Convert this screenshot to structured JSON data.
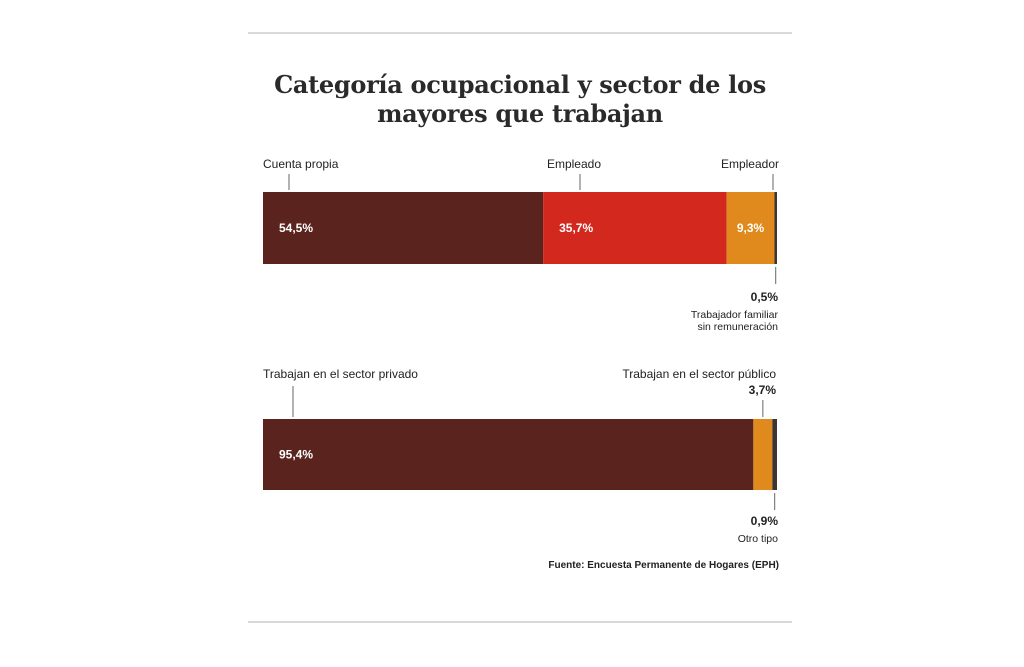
{
  "title": "Categoría ocupacional y sector de los mayores que trabajan",
  "colors": {
    "maroon": "#5a231d",
    "red": "#d2281e",
    "orange": "#e08a1e",
    "dark": "#3d3530",
    "tick": "#666666"
  },
  "chart_data": [
    {
      "type": "bar",
      "orientation": "stacked-horizontal",
      "segments": [
        {
          "name": "Cuenta propia",
          "value": 54.5,
          "label": "54,5%",
          "color": "#5a231d"
        },
        {
          "name": "Empleado",
          "value": 35.7,
          "label": "35,7%",
          "color": "#d2281e"
        },
        {
          "name": "Empleador",
          "value": 9.3,
          "label": "9,3%",
          "color": "#e08a1e"
        },
        {
          "name": "Trabajador familiar sin remuneración",
          "value": 0.5,
          "label": "0,5%",
          "color": "#3d3530"
        }
      ]
    },
    {
      "type": "bar",
      "orientation": "stacked-horizontal",
      "segments": [
        {
          "name": "Trabajan en el sector privado",
          "value": 95.4,
          "label": "95,4%",
          "color": "#5a231d"
        },
        {
          "name": "Trabajan en el sector público",
          "value": 3.7,
          "label": "3,7%",
          "color": "#e08a1e"
        },
        {
          "name": "Otro tipo",
          "value": 0.9,
          "label": "0,9%",
          "color": "#3d3530"
        }
      ]
    }
  ],
  "labels": {
    "bar1": {
      "cuenta_propia": "Cuenta propia",
      "empleado": "Empleado",
      "empleador": "Empleador",
      "familiar_value": "0,5%",
      "familiar_line1": "Trabajador familiar",
      "familiar_line2": "sin remuneración"
    },
    "bar2": {
      "privado": "Trabajan en el sector privado",
      "publico": "Trabajan en el sector público",
      "publico_value": "3,7%",
      "otro_value": "0,9%",
      "otro": "Otro tipo"
    }
  },
  "source": "Fuente: Encuesta Permanente de Hogares (EPH)"
}
